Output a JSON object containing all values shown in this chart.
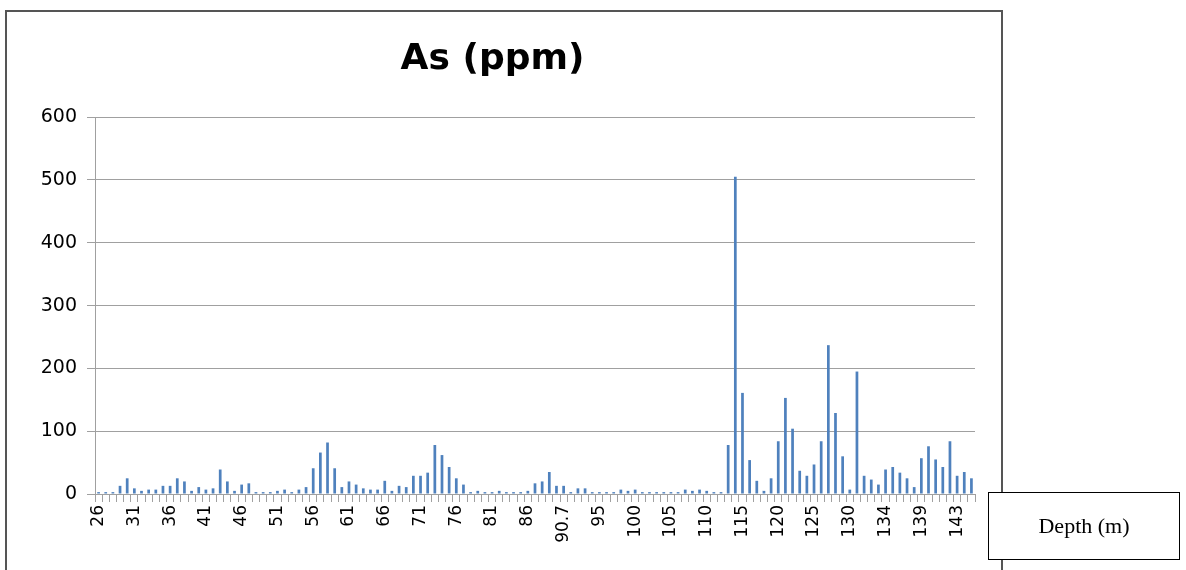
{
  "chart_data": {
    "type": "bar",
    "title": "As (ppm)",
    "xlabel": "Depth (m)",
    "categories": [
      "26",
      null,
      null,
      null,
      null,
      "31",
      null,
      null,
      null,
      null,
      "36",
      null,
      null,
      null,
      null,
      "41",
      null,
      null,
      null,
      null,
      "46",
      null,
      null,
      null,
      null,
      "51",
      null,
      null,
      null,
      null,
      "56",
      null,
      null,
      null,
      null,
      "61",
      null,
      null,
      null,
      null,
      "66",
      null,
      null,
      null,
      null,
      "71",
      null,
      null,
      null,
      null,
      "76",
      null,
      null,
      null,
      null,
      "81",
      null,
      null,
      null,
      null,
      "86",
      null,
      null,
      null,
      null,
      "90.7",
      null,
      null,
      null,
      null,
      "95",
      null,
      null,
      null,
      null,
      "100",
      null,
      null,
      null,
      null,
      "105",
      null,
      null,
      null,
      null,
      "110",
      null,
      null,
      null,
      null,
      "115",
      null,
      null,
      null,
      null,
      "120",
      null,
      null,
      null,
      null,
      "125",
      null,
      null,
      null,
      null,
      "130",
      null,
      null,
      null,
      null,
      "134",
      null,
      null,
      null,
      null,
      "139",
      null,
      null,
      null,
      null,
      "143",
      null,
      null
    ],
    "values": [
      3,
      3,
      3,
      13,
      25,
      9,
      5,
      7,
      7,
      13,
      13,
      25,
      20,
      5,
      11,
      7,
      9,
      39,
      20,
      5,
      15,
      17,
      3,
      3,
      3,
      5,
      7,
      3,
      7,
      11,
      41,
      66,
      82,
      41,
      11,
      20,
      15,
      9,
      7,
      7,
      21,
      5,
      13,
      11,
      29,
      29,
      34,
      78,
      62,
      43,
      25,
      15,
      3,
      5,
      3,
      3,
      5,
      3,
      3,
      3,
      5,
      17,
      20,
      35,
      13,
      13,
      3,
      9,
      9,
      3,
      3,
      3,
      3,
      7,
      5,
      7,
      3,
      3,
      3,
      3,
      3,
      3,
      7,
      5,
      7,
      5,
      3,
      3,
      78,
      505,
      161,
      54,
      21,
      5,
      25,
      84,
      153,
      104,
      37,
      29,
      47,
      84,
      237,
      129,
      60,
      7,
      195,
      29,
      23,
      15,
      39,
      43,
      34,
      25,
      11,
      57,
      76,
      55,
      43,
      84,
      29,
      35,
      25
    ],
    "color": "#4f81bd",
    "ylim": [
      0,
      600
    ],
    "yticks": [
      0,
      100,
      200,
      300,
      400,
      500,
      600
    ],
    "grid": "y",
    "legend": false
  }
}
